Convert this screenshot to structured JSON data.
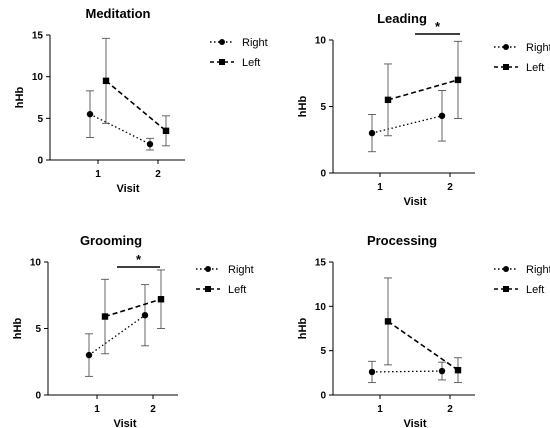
{
  "colors": {
    "ink": "#000000",
    "error": "#555555"
  },
  "chart_data": [
    {
      "type": "line",
      "title": "Meditation",
      "xlabel": "Visit",
      "ylabel": "hHb",
      "ylim": [
        0,
        15
      ],
      "yticks": [
        "0",
        "5",
        "10",
        "15"
      ],
      "categories": [
        "1",
        "2"
      ],
      "legend_position": "right",
      "series": [
        {
          "name": "Right",
          "values": [
            5.5,
            1.9
          ],
          "error": [
            2.8,
            0.7
          ],
          "style": "dotted",
          "marker": "circle"
        },
        {
          "name": "Left",
          "values": [
            9.5,
            3.5
          ],
          "error": [
            5.1,
            1.8
          ],
          "style": "dashed",
          "marker": "square"
        }
      ],
      "annotations": []
    },
    {
      "type": "line",
      "title": "Leading",
      "xlabel": "Visit",
      "ylabel": "hHb",
      "ylim": [
        0,
        10
      ],
      "yticks": [
        "0",
        "5",
        "10"
      ],
      "categories": [
        "1",
        "2"
      ],
      "legend_position": "right",
      "series": [
        {
          "name": "Right",
          "values": [
            3.0,
            4.3
          ],
          "error": [
            1.4,
            1.9
          ],
          "style": "dotted",
          "marker": "circle"
        },
        {
          "name": "Left",
          "values": [
            5.5,
            7.0
          ],
          "error": [
            2.7,
            2.9
          ],
          "style": "dashed",
          "marker": "square"
        }
      ],
      "annotations": [
        {
          "text": "*"
        }
      ]
    },
    {
      "type": "line",
      "title": "Grooming",
      "xlabel": "Visit",
      "ylabel": "hHb",
      "ylim": [
        0,
        10
      ],
      "yticks": [
        "0",
        "5",
        "10"
      ],
      "categories": [
        "1",
        "2"
      ],
      "legend_position": "right",
      "series": [
        {
          "name": "Right",
          "values": [
            3.0,
            6.0
          ],
          "error": [
            1.6,
            2.3
          ],
          "style": "dotted",
          "marker": "circle"
        },
        {
          "name": "Left",
          "values": [
            5.9,
            7.2
          ],
          "error": [
            2.8,
            2.2
          ],
          "style": "dashed",
          "marker": "square"
        }
      ],
      "annotations": [
        {
          "text": "*"
        }
      ]
    },
    {
      "type": "line",
      "title": "Processing",
      "xlabel": "Visit",
      "ylabel": "hHb",
      "ylim": [
        0,
        15
      ],
      "yticks": [
        "0",
        "5",
        "10",
        "15"
      ],
      "categories": [
        "1",
        "2"
      ],
      "legend_position": "right",
      "series": [
        {
          "name": "Right",
          "values": [
            2.6,
            2.7
          ],
          "error": [
            1.2,
            1.0
          ],
          "style": "dotted",
          "marker": "circle"
        },
        {
          "name": "Left",
          "values": [
            8.3,
            2.8
          ],
          "error": [
            4.9,
            1.4
          ],
          "style": "dashed",
          "marker": "square"
        }
      ],
      "annotations": []
    }
  ]
}
